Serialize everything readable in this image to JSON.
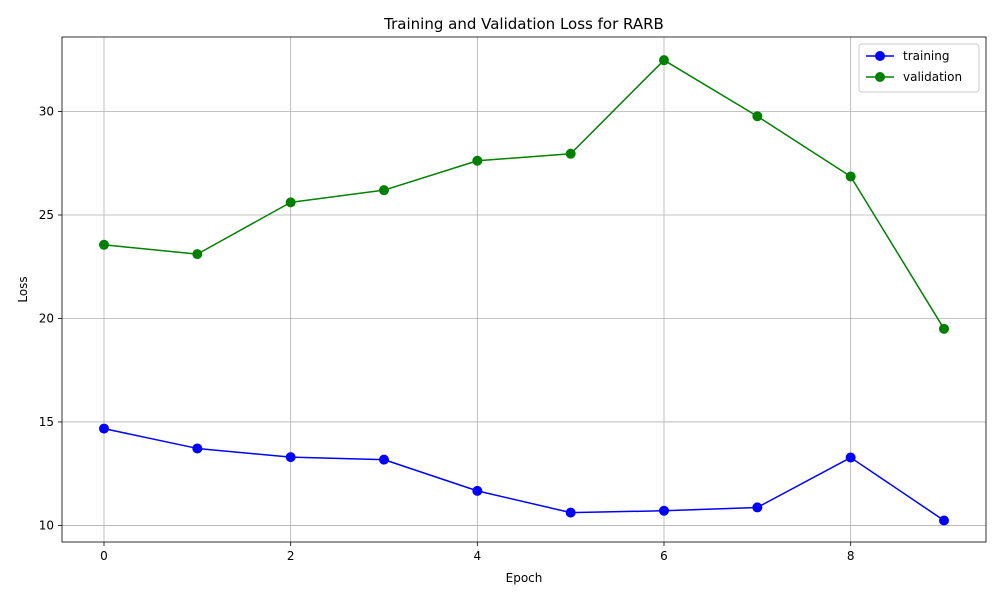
{
  "chart_data": {
    "type": "line",
    "title": "Training and Validation Loss for RARB",
    "xlabel": "Epoch",
    "ylabel": "Loss",
    "x": [
      0,
      1,
      2,
      3,
      4,
      5,
      6,
      7,
      8,
      9
    ],
    "xlim": [
      -0.45,
      9.45
    ],
    "ylim": [
      9.2,
      33.6
    ],
    "xticks": [
      0,
      2,
      4,
      6,
      8
    ],
    "yticks": [
      10,
      15,
      20,
      25,
      30
    ],
    "grid": true,
    "legend_position": "top-right",
    "series": [
      {
        "name": "training",
        "color": "#0000ff",
        "marker": "circle",
        "values": [
          14.68,
          13.72,
          13.3,
          13.18,
          11.67,
          10.62,
          10.71,
          10.87,
          13.28,
          10.24
        ]
      },
      {
        "name": "validation",
        "color": "#008000",
        "marker": "circle",
        "values": [
          23.56,
          23.11,
          25.61,
          26.2,
          27.62,
          27.96,
          32.48,
          29.77,
          26.86,
          19.5
        ]
      }
    ]
  }
}
